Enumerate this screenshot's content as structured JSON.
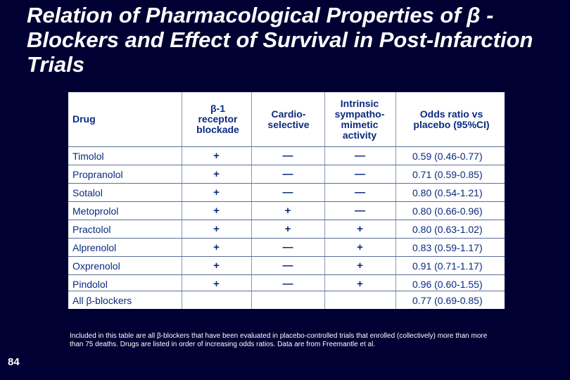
{
  "slide": {
    "title": "Relation of Pharmacological Properties of β -Blockers and Effect of Survival in Post-Infarction Trials",
    "number": "84",
    "footnote": "Included in this table are all β-blockers that have been evaluated in placebo-controlled trials that enrolled (collectively) more than more than 75 deaths.  Drugs are listed in order of increasing odds ratios.  Data are from Freemantle et al."
  },
  "table": {
    "headers": {
      "drug": "Drug",
      "b1": "β-1 receptor blockade",
      "cardio": "Cardio-selective",
      "isa": "Intrinsic sympatho-mimetic activity",
      "odds": "Odds ratio vs placebo (95%CI)"
    },
    "rows": [
      {
        "drug": "Timolol",
        "b1": "+",
        "cardio": "—",
        "isa": "—",
        "odds": "0.59 (0.46-0.77)"
      },
      {
        "drug": "Propranolol",
        "b1": "+",
        "cardio": "—",
        "isa": "—",
        "odds": "0.71 (0.59-0.85)"
      },
      {
        "drug": "Sotalol",
        "b1": "+",
        "cardio": "—",
        "isa": "—",
        "odds": "0.80 (0.54-1.21)"
      },
      {
        "drug": "Metoprolol",
        "b1": "+",
        "cardio": "+",
        "isa": "—",
        "odds": "0.80 (0.66-0.96)"
      },
      {
        "drug": "Practolol",
        "b1": "+",
        "cardio": "+",
        "isa": "+",
        "odds": "0.80 (0.63-1.02)"
      },
      {
        "drug": "Alprenolol",
        "b1": "+",
        "cardio": "—",
        "isa": "+",
        "odds": "0.83 (0.59-1.17)"
      },
      {
        "drug": "Oxprenolol",
        "b1": "+",
        "cardio": "—",
        "isa": "+",
        "odds": "0.91 (0.71-1.17)"
      },
      {
        "drug": "Pindolol",
        "b1": "+",
        "cardio": "—",
        "isa": "+",
        "odds": "0.96 (0.60-1.55)"
      }
    ],
    "total": {
      "drug": "All β-blockers",
      "odds": "0.77 (0.69-0.85)"
    }
  },
  "colors": {
    "background": "#000033",
    "table_background": "#ffffff",
    "table_text": "#0a2a80"
  }
}
